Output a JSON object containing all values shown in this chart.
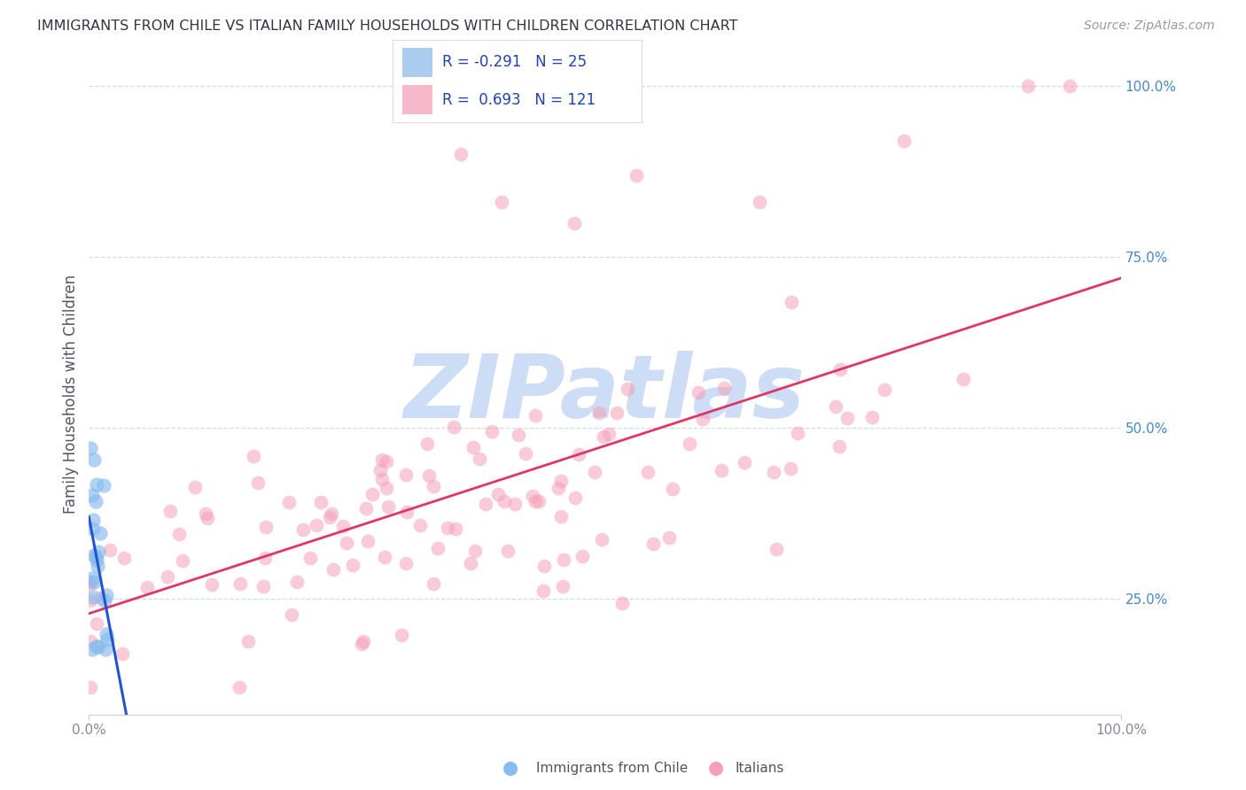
{
  "title": "IMMIGRANTS FROM CHILE VS ITALIAN FAMILY HOUSEHOLDS WITH CHILDREN CORRELATION CHART",
  "source": "Source: ZipAtlas.com",
  "ylabel": "Family Households with Children",
  "right_yticks": [
    "25.0%",
    "50.0%",
    "75.0%",
    "100.0%"
  ],
  "right_ytick_vals": [
    0.25,
    0.5,
    0.75,
    1.0
  ],
  "chile_color": "#88bbee",
  "italian_color": "#f5a0b8",
  "chile_line_color": "#2255cc",
  "italian_line_color": "#e03565",
  "chile_legend_color": "#aaccee",
  "italian_legend_color": "#f8b8cc",
  "background": "#ffffff",
  "watermark": "ZIPatlas",
  "watermark_color": "#ccddf5",
  "grid_color": "#d0d8e8",
  "xlim": [
    0.0,
    1.0
  ],
  "ylim": [
    0.08,
    1.02
  ],
  "seed": 7,
  "title_fontsize": 11.5,
  "source_fontsize": 10,
  "legend_text_color": "#2244aa",
  "axis_label_color": "#555566",
  "tick_color": "#888899",
  "right_tick_color": "#4488cc"
}
